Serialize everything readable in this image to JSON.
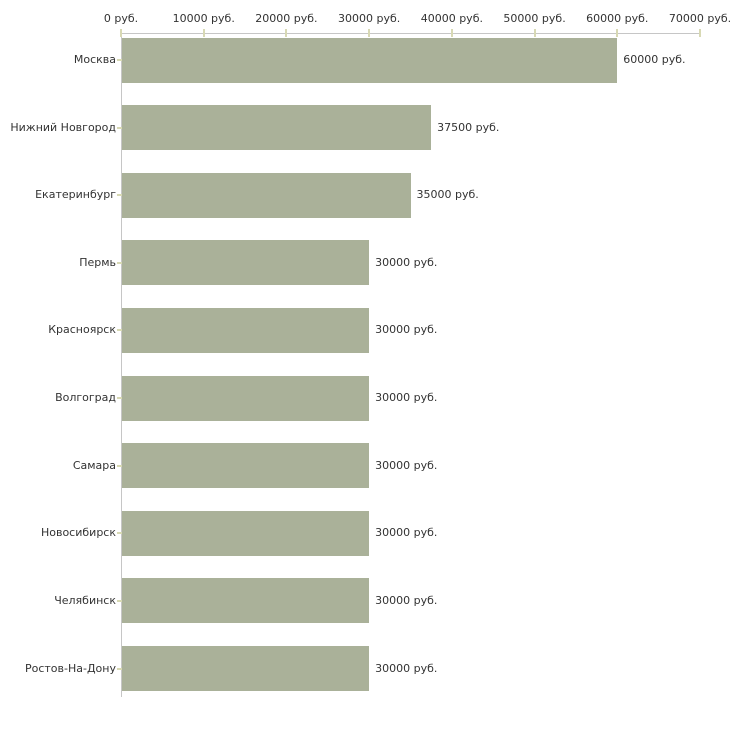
{
  "chart_data": {
    "type": "bar",
    "orientation": "horizontal",
    "title": "",
    "xlabel": "",
    "ylabel": "",
    "unit": "руб.",
    "categories": [
      "Москва",
      "Нижний Новгород",
      "Екатеринбург",
      "Пермь",
      "Красноярск",
      "Волгоград",
      "Самара",
      "Новосибирск",
      "Челябинск",
      "Ростов-На-Дону"
    ],
    "values": [
      60000,
      37500,
      35000,
      30000,
      30000,
      30000,
      30000,
      30000,
      30000,
      30000
    ],
    "value_labels": [
      "60000 руб.",
      "37500 руб.",
      "35000 руб.",
      "30000 руб.",
      "30000 руб.",
      "30000 руб.",
      "30000 руб.",
      "30000 руб.",
      "30000 руб.",
      "30000 руб."
    ],
    "x_ticks": [
      0,
      10000,
      20000,
      30000,
      40000,
      50000,
      60000,
      70000
    ],
    "x_tick_labels": [
      "0 руб.",
      "10000 руб.",
      "20000 руб.",
      "30000 руб.",
      "40000 руб.",
      "50000 руб.",
      "60000 руб.",
      "70000 руб."
    ],
    "xlim": [
      0,
      70000
    ],
    "grid": false,
    "legend": false,
    "colors": {
      "bar": "#aab199",
      "axis_line": "#c6c6c6",
      "tick_mark": "#d8d9b4",
      "text": "#333333",
      "background": "#ffffff"
    }
  }
}
